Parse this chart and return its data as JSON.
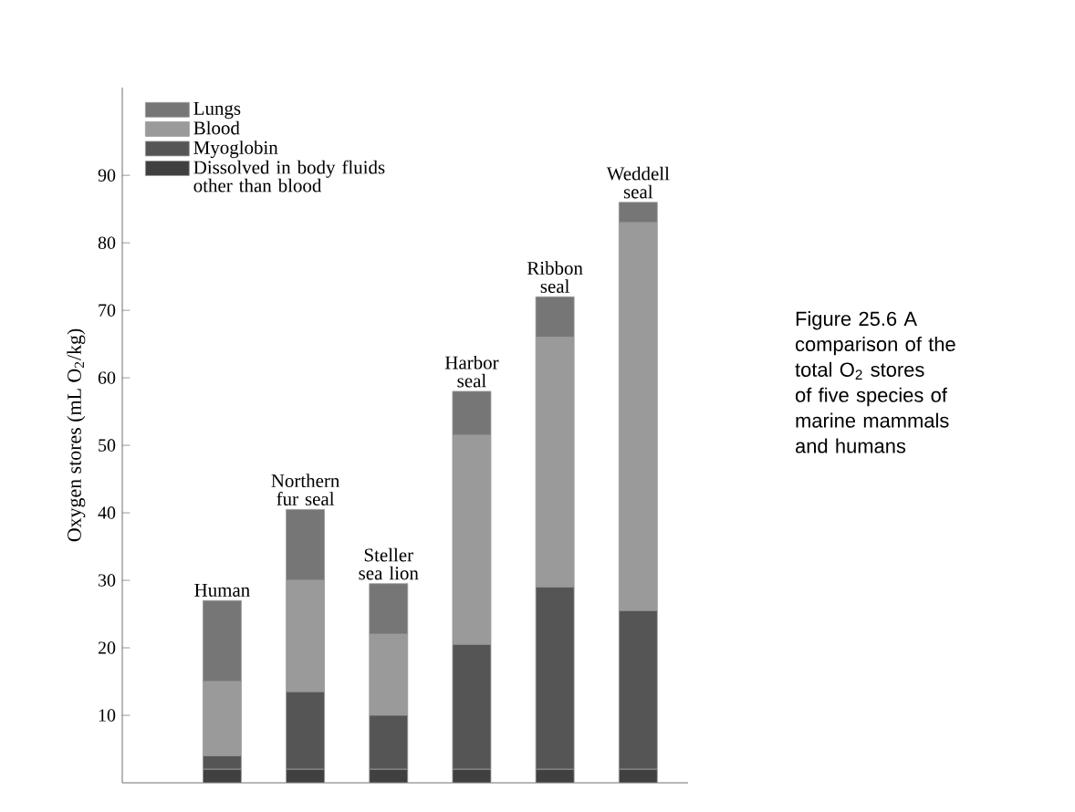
{
  "chart_data": {
    "type": "bar",
    "stacked": true,
    "ylabel": "Oxygen stores (mL O$_{2}$/kg)",
    "categories": [
      "Human",
      "Northern fur seal",
      "Steller sea lion",
      "Harbor seal",
      "Ribbon seal",
      "Weddell seal"
    ],
    "series": [
      {
        "name": "Dissolved in body fluids other than blood",
        "color": "#404040",
        "values": [
          2,
          2,
          2,
          2,
          2,
          2
        ]
      },
      {
        "name": "Myoglobin",
        "color": "#555555",
        "values": [
          2,
          11.5,
          8,
          18.5,
          27,
          23.5
        ]
      },
      {
        "name": "Blood",
        "color": "#9a9a9a",
        "values": [
          11,
          16.5,
          12,
          31,
          37,
          57.5
        ]
      },
      {
        "name": "Lungs",
        "color": "#767676",
        "values": [
          12,
          10.5,
          7.5,
          6.5,
          6,
          3
        ]
      }
    ],
    "ylim": [
      0,
      103
    ],
    "yticks": [
      10,
      20,
      30,
      40,
      50,
      60,
      70,
      80,
      90
    ],
    "tick_labels": "y",
    "legend": "top left",
    "grid": false,
    "annotations": [
      "Figure 25.6  A comparison of the total O$_{2}$ stores of five species of marine mammals and humans"
    ]
  }
}
